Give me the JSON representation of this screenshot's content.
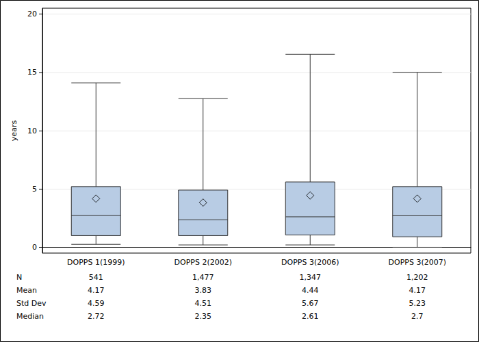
{
  "chart_data": {
    "type": "boxplot",
    "y_label": "years",
    "categories": [
      "DOPPS 1(1999)",
      "DOPPS 2(2002)",
      "DOPPS 3(2006)",
      "DOPPS 3(2007)"
    ],
    "boxes": [
      [
        0.25,
        1.0,
        2.72,
        5.2,
        14.1
      ],
      [
        0.2,
        1.0,
        2.35,
        4.9,
        12.75
      ],
      [
        0.2,
        1.05,
        2.61,
        5.6,
        16.55
      ],
      [
        0.0,
        0.9,
        2.7,
        5.2,
        15.0
      ]
    ],
    "means": [
      4.17,
      3.83,
      4.44,
      4.17
    ],
    "color": "#b8cce4",
    "marker": "diamond",
    "ylim": [
      -0.5,
      20.5
    ],
    "yticks": [
      0,
      5,
      10,
      15,
      20
    ],
    "grid": true,
    "stats": [
      {
        "label": "N",
        "values": [
          541,
          1477,
          1347,
          1202
        ],
        "value_labels": [
          "541",
          "1,477",
          "1,347",
          "1,202"
        ]
      },
      {
        "label": "Mean",
        "values": [
          4.17,
          3.83,
          4.44,
          4.17
        ],
        "value_labels": [
          "4.17",
          "3.83",
          "4.44",
          "4.17"
        ]
      },
      {
        "label": "Std Dev",
        "values": [
          4.59,
          4.51,
          5.67,
          5.23
        ],
        "value_labels": [
          "4.59",
          "4.51",
          "5.67",
          "5.23"
        ]
      },
      {
        "label": "Median",
        "values": [
          2.72,
          2.35,
          2.61,
          2.7
        ],
        "value_labels": [
          "2.72",
          "2.35",
          "2.61",
          "2.7"
        ]
      }
    ]
  }
}
